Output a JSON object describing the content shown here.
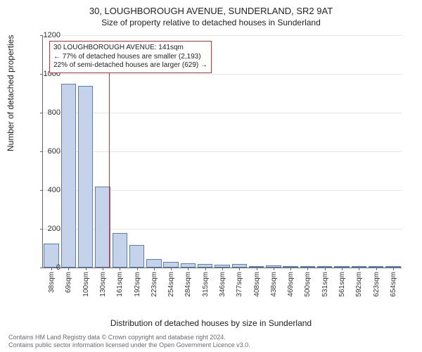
{
  "title": "30, LOUGHBOROUGH AVENUE, SUNDERLAND, SR2 9AT",
  "subtitle": "Size of property relative to detached houses in Sunderland",
  "ylabel": "Number of detached properties",
  "xlabel": "Distribution of detached houses by size in Sunderland",
  "chart": {
    "type": "bar",
    "ylim": [
      0,
      1200
    ],
    "ytick_step": 200,
    "bar_fill": "#c4d3ea",
    "bar_border": "#5b7fb5",
    "grid_color": "#e5e5eb",
    "background": "#ffffff",
    "categories": [
      "38sqm",
      "69sqm",
      "100sqm",
      "130sqm",
      "161sqm",
      "192sqm",
      "223sqm",
      "254sqm",
      "284sqm",
      "315sqm",
      "346sqm",
      "377sqm",
      "408sqm",
      "438sqm",
      "469sqm",
      "500sqm",
      "531sqm",
      "561sqm",
      "592sqm",
      "623sqm",
      "654sqm"
    ],
    "values": [
      125,
      950,
      940,
      420,
      180,
      115,
      45,
      30,
      22,
      20,
      15,
      18,
      3,
      12,
      3,
      3,
      2,
      2,
      2,
      2,
      2
    ]
  },
  "annotation": {
    "line1": "30 LOUGHBOROUGH AVENUE: 141sqm",
    "line2": "← 77% of detached houses are smaller (2,193)",
    "line3": "22% of semi-detached houses are larger (629) →",
    "marker_category_index": 3.35,
    "box_color": "#cc3333"
  },
  "footer": {
    "line1": "Contains HM Land Registry data © Crown copyright and database right 2024.",
    "line2": "Contains public sector information licensed under the Open Government Licence v3.0."
  }
}
